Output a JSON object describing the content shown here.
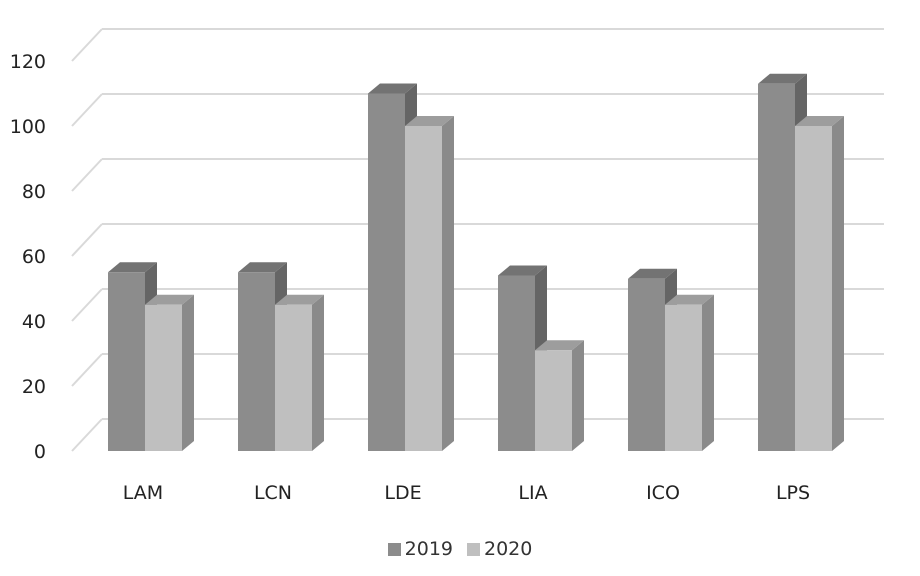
{
  "chart_data": {
    "type": "bar",
    "title": "",
    "xlabel": "",
    "ylabel": "",
    "categories": [
      "LAM",
      "LCN",
      "LDE",
      "LIA",
      "ICO",
      "LPS"
    ],
    "series": [
      {
        "name": "2019",
        "values": [
          55,
          55,
          110,
          54,
          53,
          113
        ],
        "color": "#8c8c8c"
      },
      {
        "name": "2020",
        "values": [
          45,
          45,
          100,
          31,
          45,
          100
        ],
        "color": "#bfbfbf"
      }
    ],
    "ylim": [
      0,
      120
    ],
    "yticks": [
      0,
      20,
      40,
      60,
      80,
      100,
      120
    ],
    "grid": true,
    "style": "3d-clustered-column",
    "legend_position": "bottom"
  }
}
